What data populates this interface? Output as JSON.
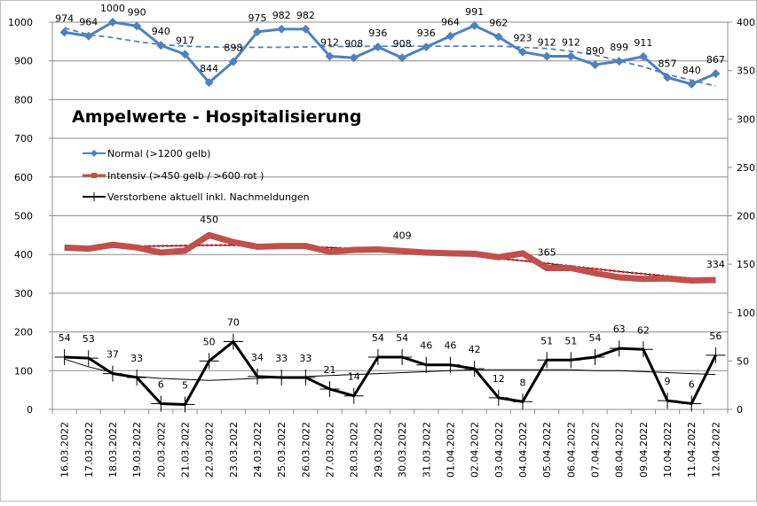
{
  "chart_data": {
    "type": "line",
    "title": "Ampelwerte - Hospitalisierung",
    "xlabel": "",
    "ylabel_left": "",
    "ylabel_right": "",
    "ylim_left": [
      0,
      1000
    ],
    "ylim_right": [
      0,
      400
    ],
    "yticks_left": [
      0,
      100,
      200,
      300,
      400,
      500,
      600,
      700,
      800,
      900,
      1000
    ],
    "yticks_right": [
      0,
      50,
      100,
      150,
      200,
      250,
      300,
      350,
      400
    ],
    "grid": true,
    "legend_position": "upper-left",
    "categories": [
      "16.03.2022",
      "17.03.2022",
      "18.03.2022",
      "19.03.2022",
      "20.03.2022",
      "21.03.2022",
      "22.03.2022",
      "23.03.2022",
      "24.03.2022",
      "25.03.2022",
      "26.03.2022",
      "27.03.2022",
      "28.03.2022",
      "29.03.2022",
      "30.03.2022",
      "31.03.2022",
      "01.04.2022",
      "02.04.2022",
      "03.04.2022",
      "04.04.2022",
      "05.04.2022",
      "06.04.2022",
      "07.04.2022",
      "08.04.2022",
      "09.04.2022",
      "10.04.2022",
      "11.04.2022",
      "12.04.2022"
    ],
    "series": [
      {
        "name": "Normal (>1200 gelb)",
        "axis": "left",
        "color": "#4f81bd",
        "marker": "diamond",
        "values": [
          974,
          964,
          1000,
          990,
          940,
          917,
          844,
          898,
          975,
          982,
          982,
          912,
          908,
          936,
          908,
          936,
          964,
          991,
          962,
          923,
          912,
          912,
          890,
          899,
          911,
          857,
          840,
          867
        ],
        "labels": [
          "974",
          "964",
          "1000",
          "990",
          "940",
          "917",
          "844",
          "898",
          "975",
          "982",
          "982",
          "912",
          "908",
          "936",
          "908",
          "936",
          "964",
          "991",
          "962",
          "923",
          "912",
          "912",
          "890",
          "899",
          "911",
          "857",
          "840",
          "867"
        ],
        "trendline": {
          "style": "dashed",
          "color": "#4f81bd",
          "values": [
            985,
            968,
            960,
            950,
            942,
            938,
            936,
            935,
            935,
            935,
            936,
            937,
            937,
            938,
            938,
            938,
            938,
            938,
            938,
            935,
            932,
            925,
            915,
            900,
            885,
            865,
            850,
            835
          ]
        }
      },
      {
        "name": "Intensiv (>450 gelb / >600 rot )",
        "axis": "left",
        "color": "#c0504d",
        "marker": "square",
        "values": [
          418,
          415,
          425,
          418,
          405,
          410,
          450,
          432,
          420,
          422,
          422,
          407,
          412,
          413,
          409,
          405,
          403,
          402,
          393,
          403,
          365,
          365,
          352,
          341,
          337,
          338,
          333,
          334
        ],
        "labels": [
          "",
          "",
          "",
          "",
          "",
          "",
          "450",
          "",
          "",
          "",
          "",
          "",
          "",
          "",
          "409",
          "",
          "",
          "",
          "",
          "",
          "365",
          "",
          "",
          "",
          "",
          "",
          "",
          "334"
        ],
        "trendline": {
          "style": "dotted",
          "color": "#ff0000",
          "values": [
            413,
            416,
            419,
            421,
            422,
            423,
            424,
            424,
            423,
            422,
            420,
            418,
            415,
            412,
            409,
            405,
            401,
            396,
            390,
            384,
            377,
            370,
            363,
            356,
            350,
            344,
            338,
            328
          ]
        }
      },
      {
        "name": "Verstorbene aktuell inkl. Nachmeldungen",
        "axis": "right",
        "color": "#000000",
        "marker": "plus",
        "values": [
          54,
          53,
          37,
          33,
          6,
          5,
          50,
          70,
          34,
          33,
          33,
          21,
          14,
          54,
          54,
          46,
          46,
          42,
          12,
          8,
          51,
          51,
          54,
          63,
          62,
          9,
          6,
          56
        ],
        "labels": [
          "54",
          "53",
          "37",
          "33",
          "6",
          "5",
          "50",
          "70",
          "34",
          "33",
          "33",
          "21",
          "14",
          "54",
          "54",
          "46",
          "46",
          "42",
          "12",
          "8",
          "51",
          "51",
          "54",
          "63",
          "62",
          "9",
          "6",
          "56"
        ],
        "trendline": {
          "style": "solid-thin",
          "color": "#000000",
          "values": [
            52,
            44,
            38,
            34,
            32,
            31,
            30,
            31,
            32,
            33,
            34,
            35,
            36,
            37,
            38,
            39,
            40,
            41,
            41,
            41,
            41,
            41,
            40,
            40,
            39,
            38,
            37,
            36
          ]
        }
      }
    ]
  }
}
